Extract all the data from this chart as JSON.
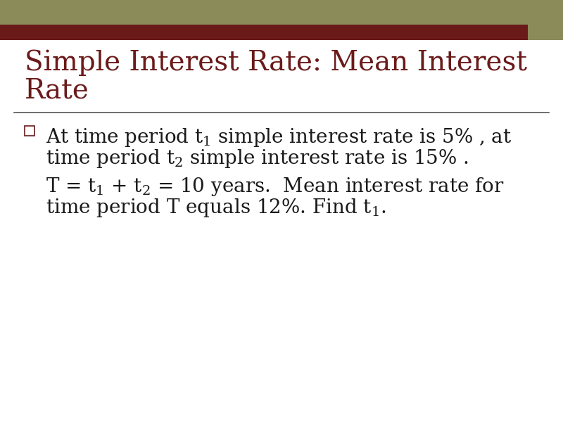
{
  "title_line1": "Simple Interest Rate: Mean Interest",
  "title_line2": "Rate",
  "title_color": "#6B1A1A",
  "background_color": "#ffffff",
  "header_bar_color1": "#8B8B5A",
  "header_bar_color2": "#6B1A1A",
  "header_square_color": "#8B8B5A",
  "bullet_color": "#6B1A1A",
  "text_color": "#1a1a1a",
  "separator_color": "#555555",
  "title_fontsize": 28,
  "body_fontsize": 20,
  "figsize": [
    8.0,
    6.0
  ],
  "dpi": 100
}
